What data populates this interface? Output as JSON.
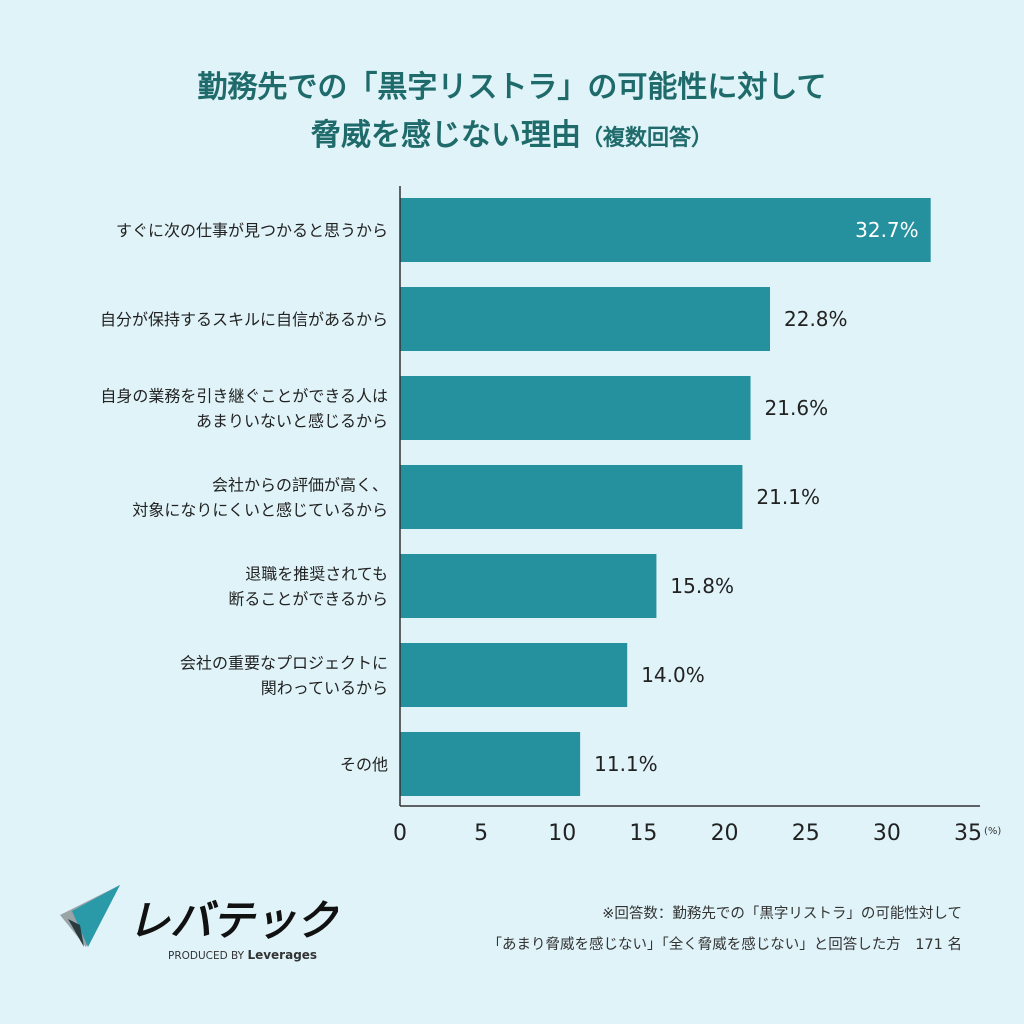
{
  "title": {
    "line1": "勤務先での「黒字リストラ」の可能性に対して",
    "line2_main": "脅威を感じない理由",
    "line2_note": "（複数回答）"
  },
  "colors": {
    "background": "#dff3f8",
    "bar": "#25909e",
    "title": "#1f6b6b"
  },
  "chart_data": {
    "type": "bar",
    "orientation": "horizontal",
    "categories": [
      [
        "すぐに次の仕事が見つかると思うから"
      ],
      [
        "自分が保持するスキルに自信があるから"
      ],
      [
        "自身の業務を引き継ぐことができる人は",
        "あまりいないと感じるから"
      ],
      [
        "会社からの評価が高く、",
        "対象になりにくいと感じているから"
      ],
      [
        "退職を推奨されても",
        "断ることができるから"
      ],
      [
        "会社の重要なプロジェクトに",
        "関わっているから"
      ],
      [
        "その他"
      ]
    ],
    "values": [
      32.7,
      22.8,
      21.6,
      21.1,
      15.8,
      14.0,
      11.1
    ],
    "data_labels": [
      "32.7%",
      "22.8%",
      "21.6%",
      "21.1%",
      "15.8%",
      "14.0%",
      "11.1%"
    ],
    "xlim": [
      0,
      35
    ],
    "xticks": [
      0,
      5,
      10,
      15,
      20,
      25,
      30,
      35
    ],
    "xunit": "(%)",
    "grid": false
  },
  "footnote": {
    "line1": "※回答数：勤務先での「黒字リストラ」の可能性対して",
    "line2": "「あまり脅威を感じない」「全く脅威を感じない」と回答した方　171 名"
  },
  "logo": {
    "text": "レバテック",
    "sub": "PRODUCED BY Leverages"
  }
}
